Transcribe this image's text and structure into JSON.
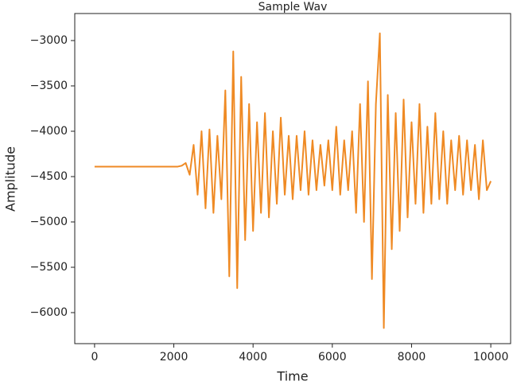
{
  "chart_data": {
    "type": "line",
    "title": "Sample Wav",
    "xlabel": "Time",
    "ylabel": "Amplitude",
    "xlim": [
      -500,
      10500
    ],
    "xticks": [
      0,
      2000,
      4000,
      6000,
      8000,
      10000
    ],
    "ylim": [
      -6342,
      -2702
    ],
    "yticks": [
      {
        "value": -6000,
        "label": "−6000"
      },
      {
        "value": -5500,
        "label": "−5500"
      },
      {
        "value": -5000,
        "label": "−5000"
      },
      {
        "value": -4500,
        "label": "−4500"
      },
      {
        "value": -4000,
        "label": "−4000"
      },
      {
        "value": -3500,
        "label": "−3500"
      },
      {
        "value": -3000,
        "label": "−3000"
      }
    ],
    "grid": false,
    "x": [
      0,
      100,
      200,
      300,
      400,
      500,
      600,
      700,
      800,
      900,
      1000,
      1100,
      1200,
      1300,
      1400,
      1500,
      1600,
      1700,
      1800,
      1900,
      2000,
      2100,
      2200,
      2300,
      2400,
      2500,
      2600,
      2700,
      2800,
      2900,
      3000,
      3100,
      3200,
      3300,
      3400,
      3500,
      3600,
      3700,
      3800,
      3900,
      4000,
      4100,
      4200,
      4300,
      4400,
      4500,
      4600,
      4700,
      4800,
      4900,
      5000,
      5100,
      5200,
      5300,
      5400,
      5500,
      5600,
      5700,
      5800,
      5900,
      6000,
      6100,
      6200,
      6300,
      6400,
      6500,
      6600,
      6700,
      6800,
      6900,
      7000,
      7100,
      7200,
      7300,
      7400,
      7500,
      7600,
      7700,
      7800,
      7900,
      8000,
      8100,
      8200,
      8300,
      8400,
      8500,
      8600,
      8700,
      8800,
      8900,
      9000,
      9100,
      9200,
      9300,
      9400,
      9500,
      9600,
      9700,
      9800,
      9900,
      10000
    ],
    "series": [
      {
        "name": "Amplitude",
        "color": "#ef8a24",
        "values": [
          -4390,
          -4390,
          -4390,
          -4390,
          -4390,
          -4390,
          -4390,
          -4390,
          -4390,
          -4390,
          -4390,
          -4390,
          -4390,
          -4390,
          -4390,
          -4390,
          -4390,
          -4390,
          -4390,
          -4390,
          -4390,
          -4390,
          -4380,
          -4350,
          -4480,
          -4150,
          -4700,
          -4000,
          -4850,
          -3980,
          -4900,
          -4050,
          -4750,
          -3550,
          -5600,
          -3120,
          -5730,
          -3400,
          -5200,
          -3700,
          -5100,
          -3900,
          -4900,
          -3800,
          -4950,
          -4000,
          -4800,
          -3850,
          -4700,
          -4050,
          -4750,
          -4050,
          -4650,
          -4000,
          -4700,
          -4100,
          -4650,
          -4150,
          -4600,
          -4100,
          -4650,
          -3950,
          -4700,
          -4100,
          -4650,
          -4000,
          -4900,
          -3700,
          -5000,
          -3450,
          -5630,
          -3700,
          -2920,
          -6170,
          -3600,
          -5300,
          -3800,
          -5100,
          -3650,
          -4950,
          -3900,
          -4800,
          -3700,
          -4900,
          -3950,
          -4800,
          -3800,
          -4750,
          -4000,
          -4800,
          -4100,
          -4650,
          -4050,
          -4700,
          -4100,
          -4650,
          -4150,
          -4750,
          -4100,
          -4650,
          -4550
        ]
      }
    ]
  }
}
